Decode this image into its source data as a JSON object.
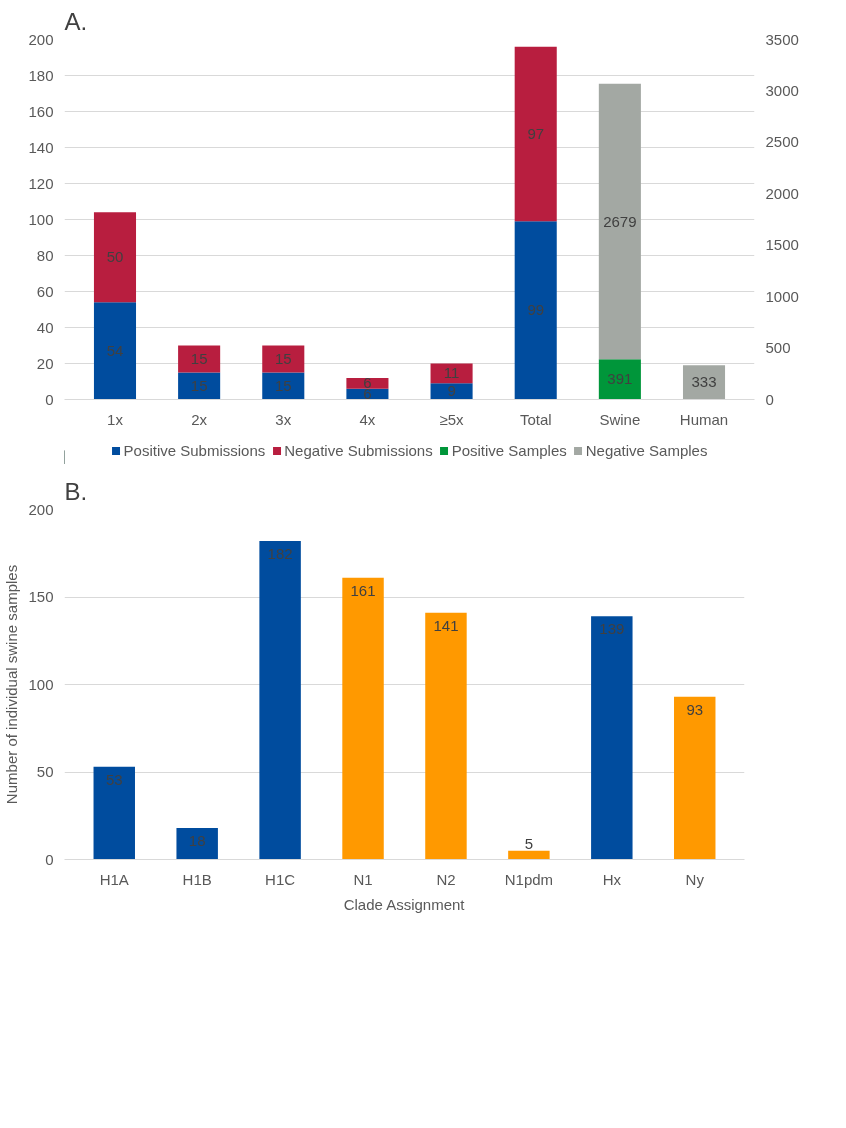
{
  "chart_data": [
    {
      "type": "bar",
      "title": "A.",
      "stacked": true,
      "categories": [
        "1x",
        "2x",
        "3x",
        "4x",
        "≥5x",
        "Total",
        "Swine",
        "Human"
      ],
      "series": [
        {
          "name": "Positive Submissions",
          "color": "#004c9e",
          "values": [
            54,
            15,
            15,
            6,
            9,
            99,
            null,
            null
          ]
        },
        {
          "name": "Negative Submissions",
          "color": "#b81e3f",
          "values": [
            50,
            15,
            15,
            6,
            11,
            97,
            null,
            null
          ]
        },
        {
          "name": "Positive Samples",
          "color": "#00963a",
          "axis": "y2",
          "values": [
            null,
            null,
            null,
            null,
            null,
            null,
            391,
            null
          ]
        },
        {
          "name": "Negative Samples",
          "color": "#a3a8a3",
          "axis": "y2",
          "values": [
            null,
            null,
            null,
            null,
            null,
            null,
            2679,
            333
          ]
        }
      ],
      "ylim": [
        0,
        200
      ],
      "yticks": [
        0,
        20,
        40,
        60,
        80,
        100,
        120,
        140,
        160,
        180,
        200
      ],
      "y2lim": [
        0,
        3500
      ],
      "y2ticks": [
        0,
        500,
        1000,
        1500,
        2000,
        2500,
        3000,
        3500
      ],
      "grid": "y",
      "legend": "bottom",
      "data_labels": true
    },
    {
      "type": "bar",
      "title": "B.",
      "xlabel": "Clade Assignment",
      "ylabel": "Number of individual swine samples",
      "categories": [
        "H1A",
        "H1B",
        "H1C",
        "N1",
        "N2",
        "N1pdm",
        "Hx",
        "Ny"
      ],
      "values": [
        53,
        18,
        182,
        161,
        141,
        5,
        139,
        93
      ],
      "colors": [
        "#004c9e",
        "#004c9e",
        "#004c9e",
        "#ff9900",
        "#ff9900",
        "#ff9900",
        "#004c9e",
        "#ff9900"
      ],
      "ylim": [
        0,
        200
      ],
      "yticks": [
        0,
        50,
        100,
        150,
        200
      ],
      "grid": "y",
      "data_labels": true
    }
  ]
}
